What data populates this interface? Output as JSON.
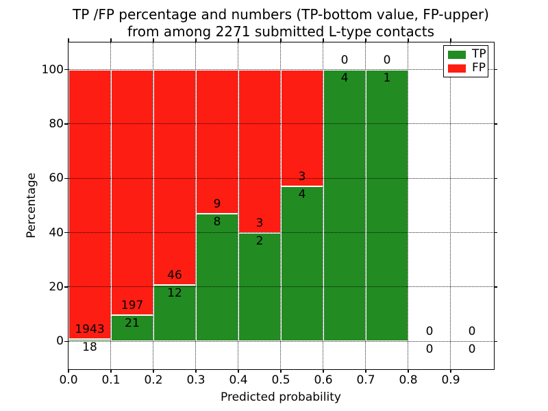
{
  "figure": {
    "title_line1": "TP /FP percentage and numbers (TP-bottom value, FP-upper)",
    "title_line2": "from among 2271 submitted L-type contacts"
  },
  "axes": {
    "xlabel": "Predicted probability",
    "ylabel": "Percentage",
    "x_tick_labels": [
      "0.0",
      "0.1",
      "0.2",
      "0.3",
      "0.4",
      "0.5",
      "0.6",
      "0.7",
      "0.8",
      "0.9"
    ],
    "y_tick_labels": [
      "0",
      "20",
      "40",
      "60",
      "80",
      "100"
    ]
  },
  "legend": {
    "items": [
      {
        "label": "TP",
        "color": "#228b22"
      },
      {
        "label": "FP",
        "color": "#fd1d13"
      }
    ]
  },
  "chart_data": {
    "type": "bar",
    "stacked": true,
    "title": "TP /FP percentage and numbers (TP-bottom value, FP-upper) from among 2271 submitted L-type contacts",
    "xlabel": "Predicted probability",
    "ylabel": "Percentage",
    "xlim": [
      0.0,
      1.0
    ],
    "ylim": [
      -10,
      110
    ],
    "grid": "dotted",
    "legend_position": "upper right",
    "total_submitted": 2271,
    "bin_edges": [
      0.0,
      0.1,
      0.2,
      0.3,
      0.4,
      0.5,
      0.6,
      0.7,
      0.8,
      0.9,
      1.0
    ],
    "x_ticks": [
      0.0,
      0.1,
      0.2,
      0.3,
      0.4,
      0.5,
      0.6,
      0.7,
      0.8,
      0.9
    ],
    "y_ticks": [
      0,
      20,
      40,
      60,
      80,
      100
    ],
    "series": [
      {
        "name": "TP",
        "color": "#228b22",
        "counts": [
          18,
          21,
          12,
          8,
          2,
          4,
          4,
          1,
          0,
          0
        ],
        "percent": [
          0.92,
          9.63,
          20.69,
          47.06,
          40.0,
          57.14,
          100.0,
          100.0,
          0,
          0
        ]
      },
      {
        "name": "FP",
        "color": "#fd1d13",
        "counts": [
          1943,
          197,
          46,
          9,
          3,
          3,
          0,
          0,
          0,
          0
        ],
        "percent": [
          99.08,
          90.37,
          79.31,
          52.94,
          60.0,
          42.86,
          0.0,
          0.0,
          0,
          0
        ]
      }
    ]
  }
}
